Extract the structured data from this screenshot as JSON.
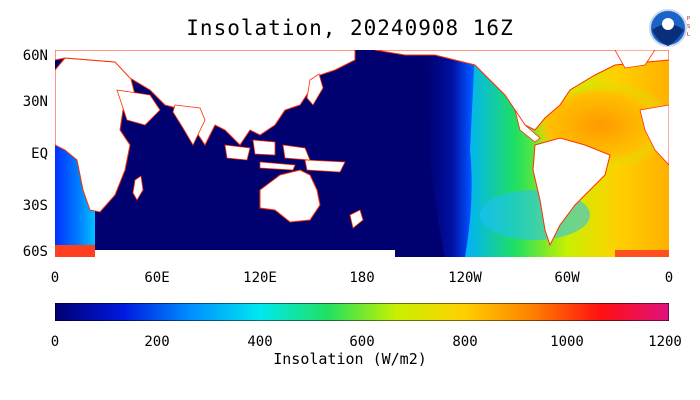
{
  "title": "Insolation, 20240908 16Z",
  "logo": {
    "top_text": "NOAA",
    "side_text": "PSL"
  },
  "map": {
    "lat_labels": [
      "60N",
      "30N",
      "EQ",
      "30S",
      "60S"
    ],
    "lon_labels": [
      "0",
      "60E",
      "120E",
      "180",
      "120W",
      "60W",
      "0"
    ]
  },
  "colorbar": {
    "ticks": [
      "0",
      "200",
      "400",
      "600",
      "800",
      "1000",
      "1200"
    ],
    "label": "Insolation (W/m2)",
    "range": [
      0,
      1200
    ],
    "colors": [
      "#000070",
      "#0018e0",
      "#0090ff",
      "#00e8f0",
      "#20e060",
      "#c8f000",
      "#ffd000",
      "#ff8000",
      "#ff1010",
      "#e01080"
    ]
  }
}
